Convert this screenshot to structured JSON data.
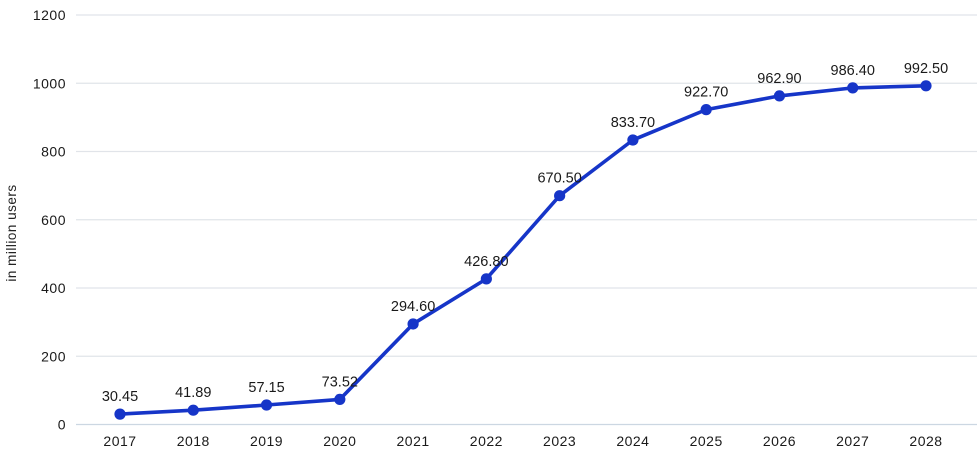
{
  "chart_data": {
    "type": "line",
    "title": "",
    "xlabel": "",
    "ylabel": "in million users",
    "categories": [
      "2017",
      "2018",
      "2019",
      "2020",
      "2021",
      "2022",
      "2023",
      "2024",
      "2025",
      "2026",
      "2027",
      "2028"
    ],
    "values": [
      30.45,
      41.89,
      57.15,
      73.52,
      294.6,
      426.8,
      670.5,
      833.7,
      922.7,
      962.9,
      986.4,
      992.5
    ],
    "value_labels": [
      "30.45",
      "41.89",
      "57.15",
      "73.52",
      "294.60",
      "426.80",
      "670.50",
      "833.70",
      "922.70",
      "962.90",
      "986.40",
      "992.50"
    ],
    "yticks": [
      0,
      200,
      400,
      600,
      800,
      1000,
      1200
    ],
    "ylim": [
      0,
      1200
    ],
    "grid": true,
    "legend_position": "none",
    "colors": {
      "line": "#1635c8",
      "marker": "#1635c8",
      "grid_line": "#e1e4e9",
      "zero_axis_line": "#ccd7e2",
      "text": "#1a1a1a",
      "background": "#ffffff"
    }
  }
}
